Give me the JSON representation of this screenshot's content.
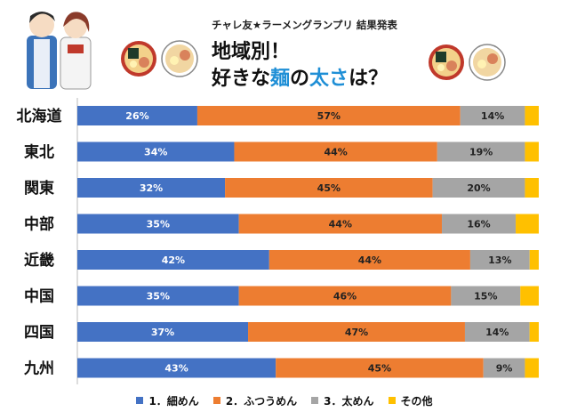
{
  "header": {
    "subtitle": "チャレ友★ラーメングランプリ 結果発表",
    "title_line1": "地域別！",
    "title_line2_prefix": "好きな",
    "title_line2_highlight": "麺",
    "title_line2_mid": "の",
    "title_line2_highlight2": "太さ",
    "title_line2_suffix": "は？"
  },
  "colors": {
    "thin": "#4472c4",
    "normal": "#ed7d31",
    "thick": "#a5a5a5",
    "other": "#ffc000",
    "highlight": "#1f8fd6"
  },
  "chart_data": {
    "type": "bar",
    "orientation": "horizontal",
    "stacked": true,
    "normalized": true,
    "categories": [
      "北海道",
      "東北",
      "関東",
      "中部",
      "近畿",
      "中国",
      "四国",
      "九州"
    ],
    "series": [
      {
        "name": "1．細めん",
        "values": [
          26,
          34,
          32,
          35,
          42,
          35,
          37,
          43
        ]
      },
      {
        "name": "2．ふつうめん",
        "values": [
          57,
          44,
          45,
          44,
          44,
          46,
          47,
          45
        ]
      },
      {
        "name": "3．太めん",
        "values": [
          14,
          19,
          20,
          16,
          13,
          15,
          14,
          9
        ]
      },
      {
        "name": "その他",
        "values": [
          3,
          3,
          3,
          5,
          2,
          4,
          2,
          3
        ]
      }
    ],
    "labels_shown_for_series": [
      0,
      1,
      2
    ],
    "label_suffix": "%",
    "xlim": [
      0,
      100
    ],
    "legend_position": "bottom",
    "grid": false
  }
}
